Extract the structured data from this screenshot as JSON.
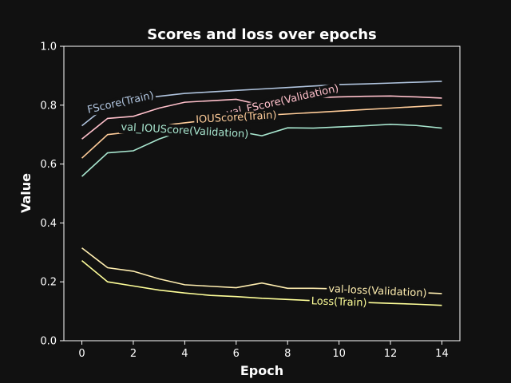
{
  "chart_data": {
    "type": "line",
    "title": "Scores and loss over epochs",
    "xlabel": "Epoch",
    "ylabel": "Value",
    "xlim": [
      -0.7,
      14.7
    ],
    "ylim": [
      0.0,
      1.0
    ],
    "xticks": [
      0,
      2,
      4,
      6,
      8,
      10,
      12,
      14
    ],
    "yticks": [
      0.0,
      0.2,
      0.4,
      0.6,
      0.8,
      1.0
    ],
    "grid": false,
    "legend": "inline labels on lines",
    "x": [
      0,
      1,
      2,
      3,
      4,
      5,
      6,
      7,
      8,
      9,
      10,
      11,
      12,
      13,
      14
    ],
    "series": [
      {
        "name": "FScore(Train)",
        "color": "#b0c4de",
        "values": [
          0.73,
          0.8,
          0.82,
          0.83,
          0.84,
          0.845,
          0.85,
          0.855,
          0.86,
          0.865,
          0.87,
          0.872,
          0.875,
          0.878,
          0.881
        ],
        "label_x": 1.5
      },
      {
        "name": "val_FScore(Validation)",
        "color": "#ffc0cb",
        "values": [
          0.685,
          0.755,
          0.762,
          0.79,
          0.81,
          0.815,
          0.82,
          0.8,
          0.82,
          0.825,
          0.828,
          0.83,
          0.831,
          0.828,
          0.824
        ],
        "label_x": 7.8
      },
      {
        "name": "IOUScore(Train)",
        "color": "#ffcc99",
        "values": [
          0.62,
          0.7,
          0.71,
          0.73,
          0.74,
          0.75,
          0.76,
          0.765,
          0.77,
          0.775,
          0.78,
          0.785,
          0.79,
          0.795,
          0.8
        ],
        "label_x": 6.0
      },
      {
        "name": "val_IOUScore(Validation)",
        "color": "#a8e6cf",
        "values": [
          0.558,
          0.638,
          0.645,
          0.685,
          0.715,
          0.71,
          0.712,
          0.696,
          0.723,
          0.722,
          0.726,
          0.73,
          0.735,
          0.731,
          0.722
        ],
        "label_x": 4.0
      },
      {
        "name": "val-loss(Validation)",
        "color": "#ffeeb0",
        "values": [
          0.315,
          0.248,
          0.236,
          0.21,
          0.19,
          0.185,
          0.18,
          0.196,
          0.178,
          0.178,
          0.176,
          0.172,
          0.168,
          0.164,
          0.16
        ],
        "label_x": 11.5
      },
      {
        "name": "Loss(Train)",
        "color": "#ffff99",
        "values": [
          0.272,
          0.2,
          0.186,
          0.172,
          0.162,
          0.154,
          0.15,
          0.144,
          0.14,
          0.136,
          0.133,
          0.13,
          0.127,
          0.124,
          0.12
        ],
        "label_x": 10.0
      }
    ]
  }
}
